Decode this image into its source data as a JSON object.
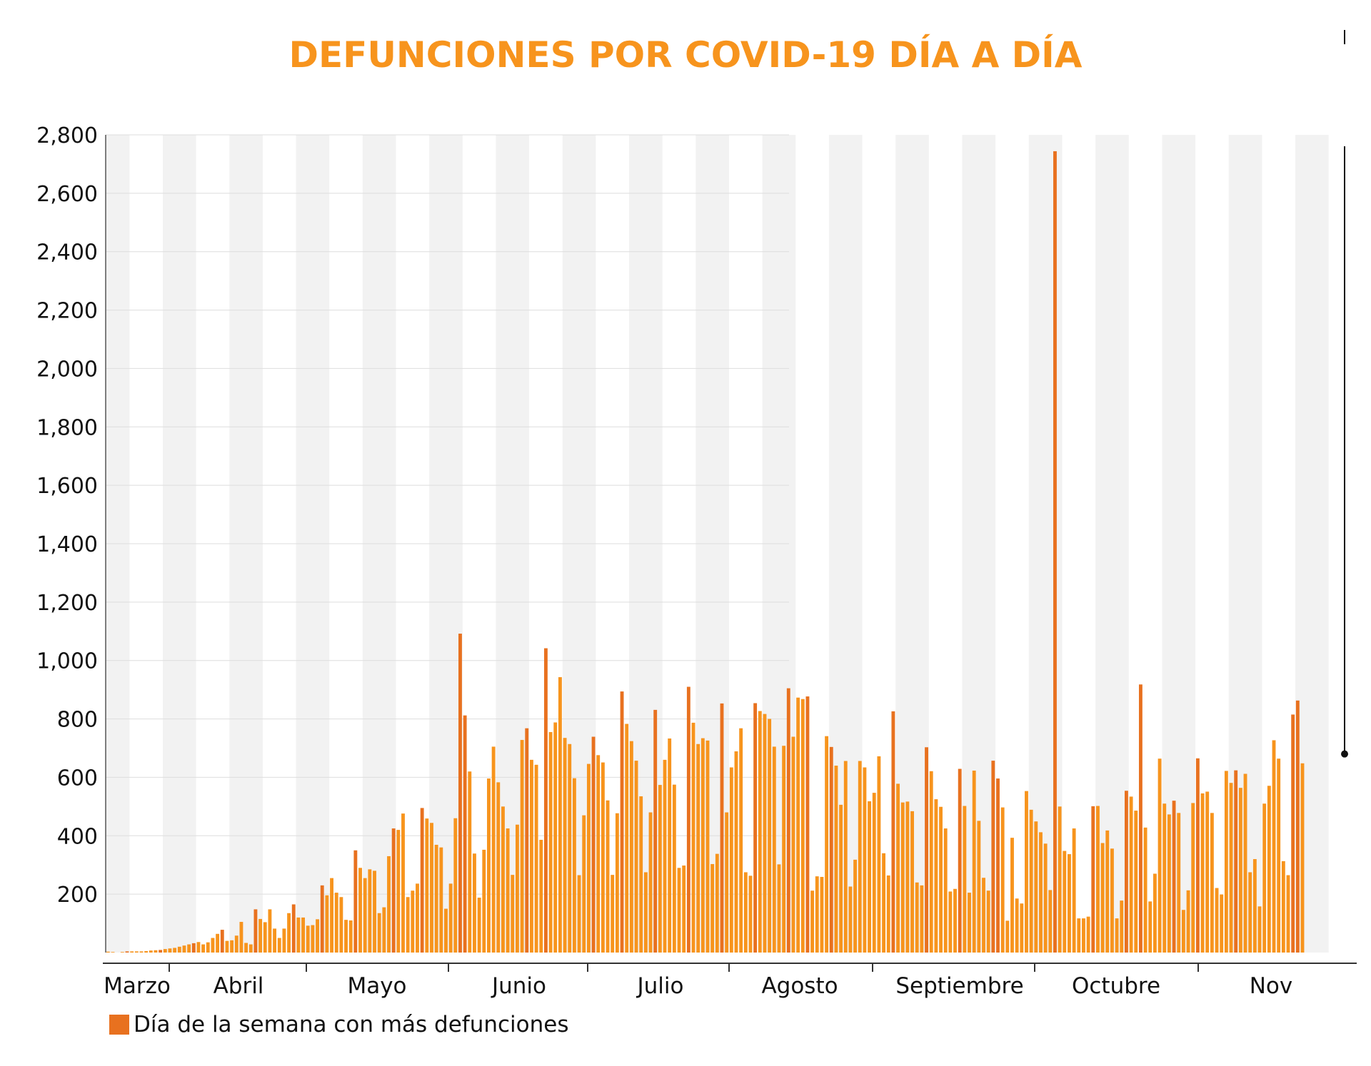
{
  "title": "DEFUNCIONES POR COVID-19 DÍA A DÍA",
  "colors": {
    "regular": "#f7941d",
    "peak": "#e8711f",
    "band": "#f2f2f2",
    "grid": "#dddddd",
    "title": "#f7941d"
  },
  "legend": {
    "label": "Día de la semana con más defunciones"
  },
  "chart_data": {
    "type": "bar",
    "title": "DEFUNCIONES POR COVID-19 DÍA A DÍA",
    "xlabel": "",
    "ylabel": "",
    "ylim": [
      0,
      2800
    ],
    "yticks": [
      200,
      400,
      600,
      800,
      1000,
      1200,
      1400,
      1600,
      1800,
      2000,
      2200,
      2400,
      2600,
      2800
    ],
    "ytick_labels": [
      "200",
      "400",
      "600",
      "800",
      "1,000",
      "1,200",
      "1,400",
      "1,600",
      "1,800",
      "2,000",
      "2,200",
      "2,400",
      "2,600",
      "2,800"
    ],
    "grid": true,
    "months": [
      {
        "label": "Marzo",
        "day": 0
      },
      {
        "label": "Abril",
        "day": 12
      },
      {
        "label": "Mayo",
        "day": 42
      },
      {
        "label": "Junio",
        "day": 73
      },
      {
        "label": "Julio",
        "day": 103
      },
      {
        "label": "Agosto",
        "day": 134
      },
      {
        "label": "Septiembre",
        "day": 165
      },
      {
        "label": "Octubre",
        "day": 195
      },
      {
        "label": "Nov",
        "day": 226
      }
    ],
    "legend": [
      "Día de la semana con más defunciones"
    ],
    "legend_position": "bottom-left",
    "highlight_value_marker": 680,
    "values": [
      3,
      2,
      0,
      2,
      4,
      4,
      4,
      4,
      5,
      7,
      8,
      9,
      12,
      14,
      16,
      20,
      24,
      28,
      32,
      36,
      28,
      35,
      50,
      64,
      78,
      40,
      42,
      58,
      105,
      33,
      28,
      148,
      115,
      104,
      148,
      82,
      50,
      82,
      135,
      165,
      120,
      120,
      92,
      94,
      114,
      230,
      196,
      255,
      205,
      190,
      112,
      110,
      350,
      290,
      255,
      285,
      280,
      135,
      155,
      330,
      425,
      420,
      476,
      190,
      212,
      236,
      495,
      459,
      444,
      369,
      360,
      150,
      236,
      460,
      1092,
      812,
      620,
      339,
      188,
      352,
      596,
      705,
      583,
      500,
      425,
      266,
      438,
      728,
      768,
      660,
      643,
      386,
      1042,
      755,
      788,
      943,
      735,
      714,
      597,
      265,
      470,
      646,
      739,
      676,
      651,
      521,
      266,
      477,
      894,
      783,
      724,
      657,
      535,
      275,
      480,
      831,
      574,
      660,
      733,
      575,
      290,
      298,
      910,
      787,
      714,
      734,
      726,
      303,
      338,
      853,
      480,
      634,
      689,
      768,
      275,
      263,
      854,
      827,
      817,
      800,
      705,
      302,
      708,
      905,
      739,
      873,
      868,
      877,
      212,
      261,
      259,
      741,
      704,
      640,
      506,
      656,
      226,
      318,
      656,
      634,
      518,
      547,
      672,
      340,
      264,
      826,
      578,
      514,
      517,
      484,
      240,
      230,
      703,
      621,
      525,
      499,
      425,
      209,
      218,
      629,
      502,
      205,
      623,
      451,
      256,
      212,
      657,
      596,
      497,
      109,
      393,
      185,
      168,
      553,
      489,
      449,
      412,
      373,
      214,
      2744,
      500,
      348,
      337,
      425,
      117,
      117,
      123,
      501,
      502,
      375,
      418,
      356,
      117,
      178,
      554,
      534,
      486,
      918,
      428,
      175,
      270,
      664,
      510,
      473,
      520,
      478,
      146,
      213,
      512,
      665,
      545,
      551,
      478,
      221,
      199,
      622,
      581,
      624,
      564,
      612,
      275,
      320,
      158,
      510,
      571,
      727,
      664,
      313,
      265,
      815,
      863,
      648
    ]
  }
}
